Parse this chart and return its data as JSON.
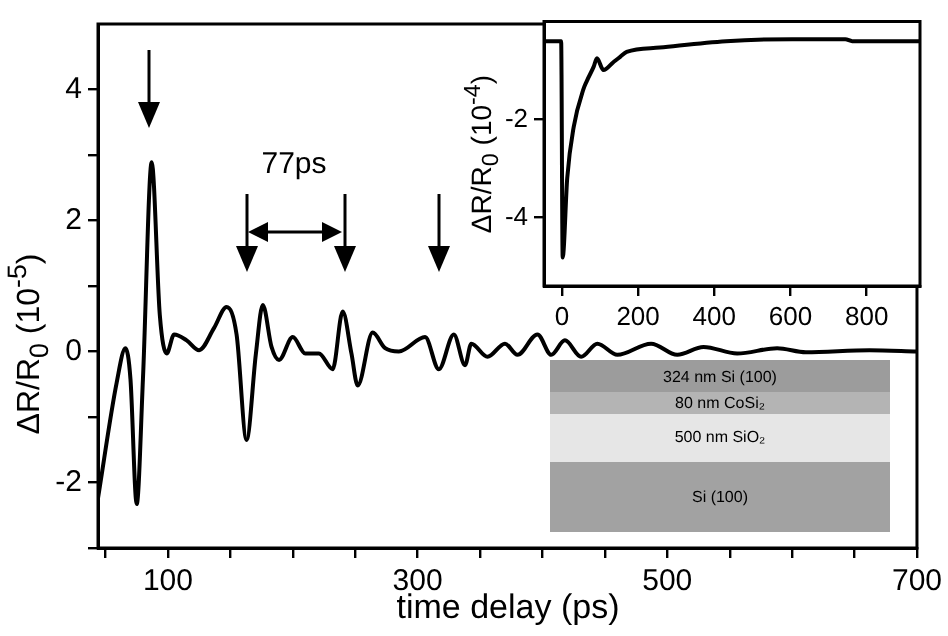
{
  "chart_data": [
    {
      "type": "line",
      "xlabel": "time delay (ps)",
      "ylabel": "ΔR/R$_{0}$ (10$^{-5}$)",
      "xlim": [
        44,
        700
      ],
      "ylim": [
        -3,
        5
      ],
      "xticks": [
        {
          "value": 50,
          "label": null
        },
        100,
        {
          "value": 150,
          "label": null
        },
        {
          "value": 200,
          "label": null
        },
        {
          "value": 250,
          "label": null
        },
        300,
        {
          "value": 350,
          "label": null
        },
        {
          "value": 400,
          "label": null
        },
        {
          "value": 450,
          "label": null
        },
        500,
        {
          "value": 550,
          "label": null
        },
        {
          "value": 600,
          "label": null
        },
        {
          "value": 650,
          "label": null
        },
        700
      ],
      "yticks": [
        {
          "value": -3,
          "label": null
        },
        -2,
        {
          "value": -1,
          "label": null
        },
        0,
        {
          "value": 1,
          "label": null
        },
        2,
        {
          "value": 3,
          "label": null
        },
        4
      ],
      "grid": false,
      "x": [
        44,
        59,
        66,
        70,
        75,
        80,
        87,
        93.5,
        99,
        105,
        115,
        125,
        137,
        147,
        155,
        163,
        170.5,
        176,
        183,
        189,
        200,
        210,
        221,
        232,
        240,
        247,
        252,
        264,
        274,
        285,
        306,
        317,
        329,
        338,
        343,
        356,
        370,
        380,
        396,
        407,
        418,
        431,
        444,
        460,
        487,
        508,
        529,
        556,
        588,
        611,
        662,
        700
      ],
      "series": [
        {
          "color": "#000000",
          "values": [
            -2.24,
            -0.47,
            0.05,
            -0.42,
            -2.33,
            -0.42,
            2.89,
            0.56,
            -0.03,
            0.26,
            0.17,
            0.02,
            0.36,
            0.68,
            0.26,
            -1.35,
            -0.03,
            0.71,
            0.07,
            -0.13,
            0.22,
            -0.03,
            -0.03,
            -0.27,
            0.61,
            -0.03,
            -0.52,
            0.29,
            0.05,
            0,
            0.22,
            -0.27,
            0.26,
            -0.21,
            0.12,
            -0.08,
            0.12,
            -0.05,
            0.26,
            -0.05,
            0.17,
            -0.08,
            0.12,
            -0.05,
            0.12,
            -0.05,
            0.07,
            -0.03,
            0.05,
            -0.01,
            0.02,
            0
          ]
        }
      ],
      "annotations": [
        "77ps",
        "324 nm Si (100)",
        "80 nm CoSi₂",
        "500 nm SiO₂",
        "Si (100)"
      ]
    },
    {
      "type": "line",
      "ylabel": "ΔR/R$_{0}$ (10$^{-4}$)",
      "xlim": [
        -47,
        940
      ],
      "ylim": [
        -5.4,
        0
      ],
      "xticks": [
        0,
        200,
        400,
        600,
        800
      ],
      "yticks": [
        -4,
        -2
      ],
      "grid": false,
      "x": [
        -47,
        -2,
        2,
        14,
        31,
        57,
        65,
        83.5,
        92,
        109,
        135,
        153,
        170,
        257,
        431,
        605,
        744,
        762,
        940
      ],
      "series": [
        {
          "color": "#000000",
          "values": [
            -0.4,
            -0.4,
            -4.82,
            -3.19,
            -2.15,
            -1.37,
            -1.22,
            -0.92,
            -0.75,
            -0.99,
            -0.83,
            -0.72,
            -0.62,
            -0.53,
            -0.4,
            -0.36,
            -0.36,
            -0.4,
            -0.4
          ]
        }
      ]
    }
  ]
}
